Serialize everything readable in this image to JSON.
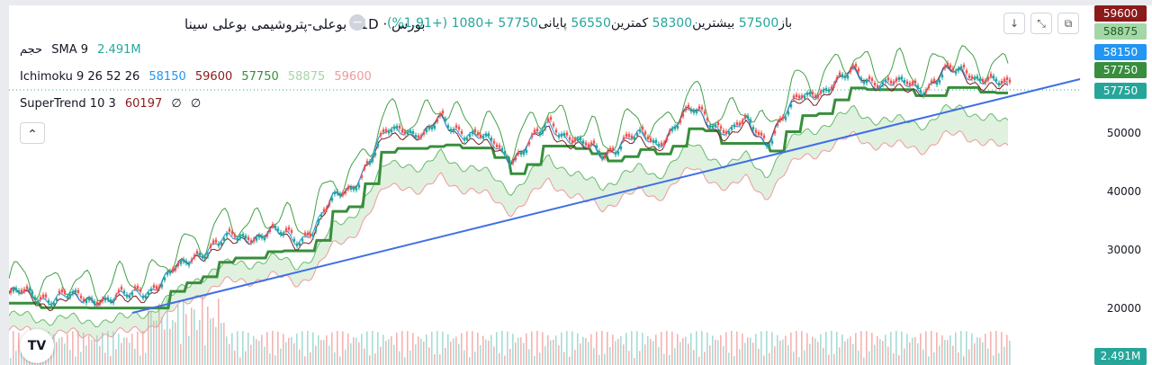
{
  "header": {
    "title": "بورس · 1D · بوعلی-پتروشیمی بوعلی سینا",
    "ohlc_open_label": "باز",
    "ohlc_open": "57500",
    "ohlc_high_label": "بیشترین",
    "ohlc_high": "58300",
    "ohlc_low_label": "کمترین",
    "ohlc_low": "56550",
    "ohlc_close_label": "پایانی",
    "ohlc_close": "57750",
    "change": "+1080 (+1.91%)"
  },
  "indicators": {
    "volume_label": "حجم",
    "volume_sma_label": "SMA 9",
    "volume_value": "2.491M",
    "ichimoku_label": "Ichimoku 9 26 52 26",
    "ichimoku_values": [
      "58150",
      "59600",
      "57750",
      "58875",
      "59600"
    ],
    "supertrend_label": "SuperTrend 10 3",
    "supertrend_value": "60197",
    "supertrend_empty": [
      "∅",
      "∅"
    ]
  },
  "price_labels": [
    {
      "value": "59600",
      "color": "#8b1a1a"
    },
    {
      "value": "58875",
      "color": "#a5d6a7",
      "text_color": "#1b5e20"
    },
    {
      "value": "58150",
      "color": "#2196f3"
    },
    {
      "value": "57750",
      "color": "#388e3c"
    },
    {
      "value": "57750",
      "color": "#26a69a"
    }
  ],
  "volume_badge": "2.491M",
  "icons": {
    "down_arrow": "↓",
    "collapse": "⤡",
    "maximize": "⧉",
    "minus": "−",
    "chevron_up": "⌃",
    "logo": "TV"
  },
  "colors": {
    "up": "#26a69a",
    "down": "#ef5350",
    "conversion": "#2196f3",
    "base": "#7f1d1d",
    "lagging": "#43a047",
    "spanA": "#66bb6a",
    "spanB": "#ef9a9a",
    "supertrend": "#388e3c",
    "trendline": "#3f6fe6"
  },
  "chart_data": {
    "type": "line",
    "ylim": [
      15000,
      63000
    ],
    "yticks": [
      20000,
      30000,
      40000,
      50000
    ],
    "series": [
      {
        "name": "Ichimoku 9 26 52 26",
        "values": []
      }
    ],
    "close_anchor": [
      [
        0,
        21600
      ],
      [
        30,
        21000
      ],
      [
        60,
        21300
      ],
      [
        80,
        20200
      ],
      [
        100,
        21000
      ],
      [
        130,
        20800
      ],
      [
        160,
        23000
      ],
      [
        190,
        26000
      ],
      [
        210,
        29000
      ],
      [
        230,
        30400
      ],
      [
        260,
        31600
      ],
      [
        290,
        32300
      ],
      [
        320,
        31200
      ],
      [
        340,
        33500
      ],
      [
        360,
        38000
      ],
      [
        380,
        40500
      ],
      [
        400,
        45000
      ],
      [
        420,
        50000
      ],
      [
        440,
        51000
      ],
      [
        460,
        49000
      ],
      [
        480,
        52000
      ],
      [
        500,
        50500
      ],
      [
        520,
        49000
      ],
      [
        540,
        47500
      ],
      [
        560,
        45500
      ],
      [
        580,
        48000
      ],
      [
        600,
        51500
      ],
      [
        620,
        49500
      ],
      [
        640,
        47000
      ],
      [
        660,
        46000
      ],
      [
        680,
        48500
      ],
      [
        700,
        49000
      ],
      [
        720,
        48000
      ],
      [
        740,
        51500
      ],
      [
        760,
        53500
      ],
      [
        780,
        52000
      ],
      [
        800,
        50000
      ],
      [
        820,
        51500
      ],
      [
        840,
        48500
      ],
      [
        860,
        52500
      ],
      [
        880,
        56000
      ],
      [
        900,
        57500
      ],
      [
        920,
        58500
      ],
      [
        940,
        60500
      ],
      [
        960,
        59000
      ],
      [
        980,
        58000
      ],
      [
        1000,
        58500
      ],
      [
        1020,
        58000
      ],
      [
        1040,
        60000
      ],
      [
        1060,
        61000
      ],
      [
        1080,
        59500
      ],
      [
        1100,
        58000
      ],
      [
        1110,
        57750
      ]
    ]
  }
}
